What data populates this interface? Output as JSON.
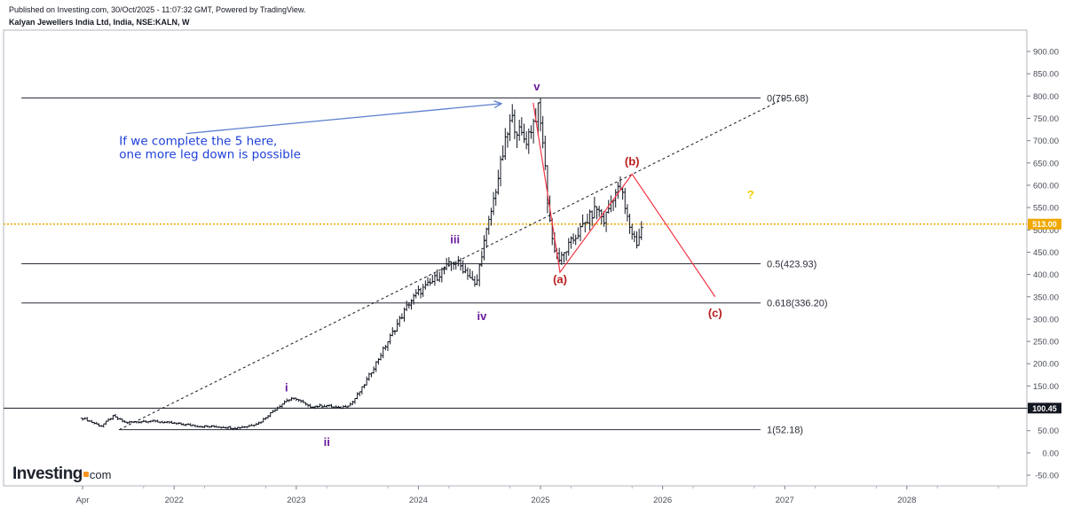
{
  "header": {
    "published": "Published on Investing.com, 30/Oct/2025 - 11:07:32 GMT, Powered by TradingView.",
    "symbol": "Kalyan Jewellers India Ltd, India, NSE:KALN, W"
  },
  "logo": {
    "main": "Investing",
    "suffix": "com"
  },
  "colors": {
    "last_price": "#f0a800",
    "wave_labels": "#6a1b9a",
    "correction_labels": "#b71c1c",
    "correction_lines": "#f23645",
    "annotation": "#1e3fd8",
    "arrow": "#5b7fcf",
    "candles": "#131722"
  },
  "chart_data": {
    "type": "ohlc",
    "title": "Kalyan Jewellers India Ltd, India, NSE:KALN, W",
    "ylim": [
      -65,
      960
    ],
    "y_ticks": [
      "900.00",
      "850.00",
      "800.00",
      "750.00",
      "700.00",
      "650.00",
      "600.00",
      "550.00",
      "500.00",
      "450.00",
      "400.00",
      "350.00",
      "300.00",
      "250.00",
      "200.00",
      "150.00",
      "100.00",
      "50.00",
      "0.00",
      "-50.00"
    ],
    "x_ticks": [
      "Apr",
      "2022",
      "2023",
      "2024",
      "2025",
      "2026",
      "2027",
      "2028"
    ],
    "x_tick_dates": [
      2021.25,
      2022.0,
      2023.0,
      2024.0,
      2025.0,
      2026.0,
      2027.0,
      2028.0
    ],
    "price_path": [
      [
        2021.25,
        78
      ],
      [
        2021.4,
        60
      ],
      [
        2021.5,
        82
      ],
      [
        2021.6,
        68
      ],
      [
        2021.8,
        72
      ],
      [
        2022.0,
        66
      ],
      [
        2022.2,
        60
      ],
      [
        2022.4,
        58
      ],
      [
        2022.5,
        56
      ],
      [
        2022.6,
        60
      ],
      [
        2022.7,
        68
      ],
      [
        2022.8,
        92
      ],
      [
        2022.92,
        118
      ],
      [
        2023.0,
        122
      ],
      [
        2023.1,
        104
      ],
      [
        2023.25,
        106
      ],
      [
        2023.35,
        100
      ],
      [
        2023.45,
        110
      ],
      [
        2023.55,
        150
      ],
      [
        2023.65,
        200
      ],
      [
        2023.75,
        250
      ],
      [
        2023.85,
        300
      ],
      [
        2023.92,
        335
      ],
      [
        2024.0,
        360
      ],
      [
        2024.1,
        380
      ],
      [
        2024.2,
        410
      ],
      [
        2024.3,
        430
      ],
      [
        2024.4,
        405
      ],
      [
        2024.47,
        370
      ],
      [
        2024.52,
        450
      ],
      [
        2024.58,
        520
      ],
      [
        2024.64,
        600
      ],
      [
        2024.7,
        680
      ],
      [
        2024.76,
        750
      ],
      [
        2024.82,
        720
      ],
      [
        2024.88,
        700
      ],
      [
        2024.94,
        740
      ],
      [
        2024.98,
        770
      ],
      [
        2025.02,
        700
      ],
      [
        2025.06,
        560
      ],
      [
        2025.1,
        470
      ],
      [
        2025.16,
        430
      ],
      [
        2025.22,
        460
      ],
      [
        2025.3,
        490
      ],
      [
        2025.38,
        520
      ],
      [
        2025.46,
        550
      ],
      [
        2025.52,
        520
      ],
      [
        2025.6,
        580
      ],
      [
        2025.66,
        595
      ],
      [
        2025.7,
        535
      ],
      [
        2025.74,
        500
      ],
      [
        2025.79,
        470
      ],
      [
        2025.83,
        505
      ]
    ],
    "last_price": "513.00",
    "extra_price_tag": "100.45",
    "extra_price_level": 100.45,
    "fib_levels": [
      {
        "label": "0(795.68)",
        "value": 795.68,
        "x_start": 2020.75
      },
      {
        "label": "0.5(423.93)",
        "value": 423.93,
        "x_start": 2020.75
      },
      {
        "label": "0.618(336.20)",
        "value": 336.2,
        "x_start": 2020.75
      },
      {
        "label": "1(52.18)",
        "value": 52.18,
        "x_start": 2021.55
      }
    ],
    "trendline": [
      [
        2021.55,
        52
      ],
      [
        2027.0,
        795
      ]
    ],
    "wave_labels": [
      {
        "text": "i",
        "x": 2022.92,
        "y": 138
      },
      {
        "text": "ii",
        "x": 2023.25,
        "y": 16
      },
      {
        "text": "iii",
        "x": 2024.3,
        "y": 470
      },
      {
        "text": "iv",
        "x": 2024.52,
        "y": 298
      },
      {
        "text": "v",
        "x": 2024.97,
        "y": 813
      }
    ],
    "correction_labels": [
      {
        "text": "(a)",
        "x": 2025.16,
        "y": 380
      },
      {
        "text": "(b)",
        "x": 2025.75,
        "y": 645
      },
      {
        "text": "(c)",
        "x": 2026.43,
        "y": 305
      }
    ],
    "correction_path": [
      [
        2024.94,
        785
      ],
      [
        2025.16,
        405
      ],
      [
        2025.75,
        625
      ],
      [
        2026.43,
        350
      ]
    ],
    "question_mark": {
      "text": "?",
      "x": 2026.72,
      "y": 570
    },
    "annotation": {
      "lines": [
        "If we complete the 5 here,",
        "one more leg down is possible"
      ],
      "x": 2021.55,
      "y": 690,
      "arrow_from": [
        2022.1,
        716
      ],
      "arrow_to": [
        2024.68,
        783
      ]
    }
  }
}
